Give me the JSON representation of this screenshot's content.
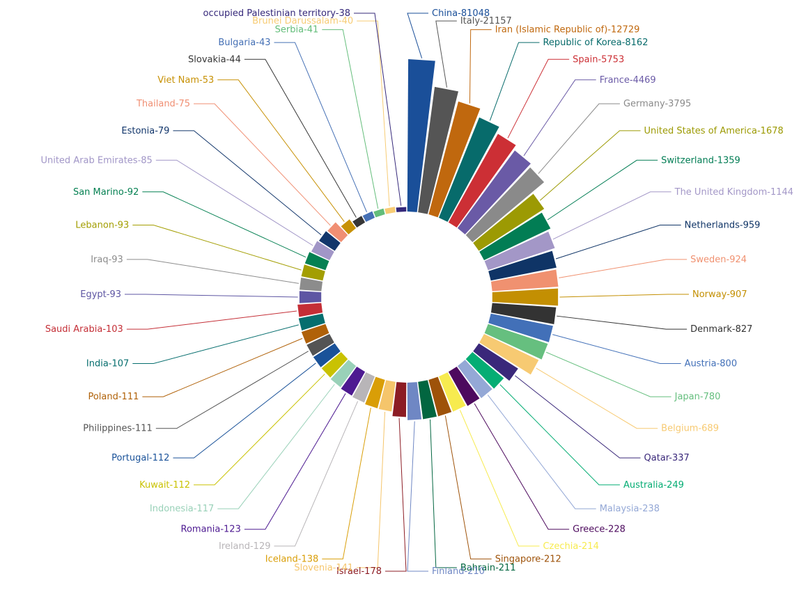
{
  "chart_data": {
    "type": "bar",
    "polar": true,
    "scale": "log",
    "legend": "none",
    "grid": false,
    "categories": [
      "China",
      "Italy",
      "Iran (Islamic Republic of)",
      "Republic of Korea",
      "Spain",
      "France",
      "Germany",
      "United States of America",
      "Switzerland",
      "The United Kingdom",
      "Netherlands",
      "Sweden",
      "Norway",
      "Denmark",
      "Austria",
      "Japan",
      "Belgium",
      "Qatar",
      "Australia",
      "Malaysia",
      "Greece",
      "Czechia",
      "Singapore",
      "Bahrain",
      "Finland",
      "Israel",
      "Slovenia",
      "Iceland",
      "Ireland",
      "Romania",
      "Indonesia",
      "Kuwait",
      "Portugal",
      "Philippines",
      "Poland",
      "India",
      "Saudi Arabia",
      "Egypt",
      "Iraq",
      "Lebanon",
      "San Marino",
      "United Arab Emirates",
      "Estonia",
      "Thailand",
      "Viet Nam",
      "Slovakia",
      "Bulgaria",
      "Serbia",
      "Brunei Darussalam",
      "occupied Palestinian territory"
    ],
    "values": [
      81048,
      21157,
      12729,
      8162,
      5753,
      4469,
      3795,
      1678,
      1359,
      1144,
      959,
      924,
      907,
      827,
      800,
      780,
      689,
      337,
      249,
      238,
      228,
      214,
      212,
      211,
      210,
      178,
      141,
      138,
      129,
      123,
      117,
      112,
      112,
      111,
      111,
      107,
      103,
      93,
      93,
      93,
      92,
      85,
      79,
      75,
      53,
      44,
      43,
      41,
      40,
      38
    ],
    "labels": [
      "China-81048",
      "Italy-21157",
      "Iran (Islamic Republic of)-12729",
      "Republic of Korea-8162",
      "Spain-5753",
      "France-4469",
      "Germany-3795",
      "United States of America-1678",
      "Switzerland-1359",
      "The United Kingdom-1144",
      "Netherlands-959",
      "Sweden-924",
      "Norway-907",
      "Denmark-827",
      "Austria-800",
      "Japan-780",
      "Belgium-689",
      "Qatar-337",
      "Australia-249",
      "Malaysia-238",
      "Greece-228",
      "Czechia-214",
      "Singapore-212",
      "Bahrain-211",
      "Finland-210",
      "Israel-178",
      "Slovenia-141",
      "Iceland-138",
      "Ireland-129",
      "Romania-123",
      "Indonesia-117",
      "Kuwait-112",
      "Portugal-112",
      "Philippines-111",
      "Poland-111",
      "India-107",
      "Saudi Arabia-103",
      "Egypt-93",
      "Iraq-93",
      "Lebanon-93",
      "San Marino-92",
      "United Arab Emirates-85",
      "Estonia-79",
      "Thailand-75",
      "Viet Nam-53",
      "Slovakia-44",
      "Bulgaria-43",
      "Serbia-41",
      "Brunei Darussalam-40",
      "occupied Palestinian territory-38"
    ],
    "colors": [
      "#1a4f99",
      "#555555",
      "#c0680e",
      "#076b6b",
      "#cc2f35",
      "#6a5aa6",
      "#8a8a8a",
      "#9c9a03",
      "#027d54",
      "#a397c7",
      "#0f3466",
      "#f09170",
      "#c38f02",
      "#333333",
      "#4270b8",
      "#66bf7f",
      "#f7ca72",
      "#3a287a",
      "#05ad74",
      "#94a8d6",
      "#4d0a5e",
      "#f7eb4f",
      "#9e5209",
      "#026640",
      "#6f87c4",
      "#8c1c24",
      "#f5c56b",
      "#d99e07",
      "#b8b5b8",
      "#4d1a91",
      "#99d1b8",
      "#c9c202",
      "#1a5299",
      "#545454",
      "#b06108",
      "#066e6e",
      "#c42e36",
      "#5e56a3",
      "#8c8c8c",
      "#a39e02",
      "#058052",
      "#a196c7",
      "#12366b",
      "#f08f73",
      "#c79105",
      "#363636",
      "#4570b5",
      "#63bd7a",
      "#f7cc75",
      "#35287a"
    ]
  }
}
